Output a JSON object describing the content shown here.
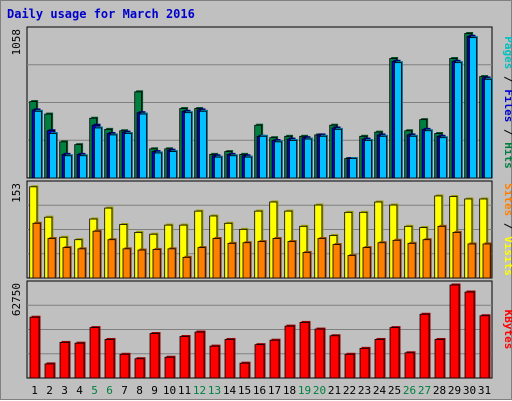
{
  "chart_data": {
    "title": "Daily usage for March 2016",
    "type": "bar",
    "month": "March 2016",
    "days": [
      "1",
      "2",
      "3",
      "4",
      "5",
      "6",
      "7",
      "8",
      "9",
      "10",
      "11",
      "12",
      "13",
      "14",
      "15",
      "16",
      "17",
      "18",
      "19",
      "20",
      "21",
      "22",
      "23",
      "24",
      "25",
      "26",
      "27",
      "28",
      "29",
      "30",
      "31"
    ],
    "weekend_days": [
      5,
      6,
      12,
      13,
      19,
      20,
      26,
      27
    ],
    "panels": [
      {
        "name": "top",
        "ymax_label": "1058",
        "ymax": 1058,
        "right_labels": [
          {
            "text": "Pages",
            "color": "#00c0c0"
          },
          {
            "text": " / ",
            "color": "#000000"
          },
          {
            "text": "Files",
            "color": "#0000cc"
          },
          {
            "text": " / ",
            "color": "#000000"
          },
          {
            "text": "Hits",
            "color": "#008040"
          }
        ],
        "series": [
          {
            "name": "Hits",
            "color": "#008040",
            "values": [
              550,
              460,
              260,
              240,
              430,
              350,
              340,
              620,
              210,
              210,
              500,
              500,
              170,
              190,
              170,
              380,
              290,
              300,
              300,
              310,
              380,
              140,
              300,
              330,
              860,
              340,
              420,
              320,
              860,
              1040,
              730
            ]
          },
          {
            "name": "Files",
            "color": "#0000cc",
            "values": [
              490,
              340,
              170,
              170,
              380,
              320,
              330,
              470,
              190,
              200,
              480,
              490,
              160,
              170,
              160,
              300,
              270,
              280,
              290,
              310,
              360,
              140,
              280,
              310,
              840,
              310,
              350,
              300,
              840,
              1020,
              720
            ]
          },
          {
            "name": "Pages",
            "color": "#00c0ff",
            "values": [
              480,
              320,
              160,
              160,
              360,
              310,
              320,
              460,
              180,
              190,
              470,
              480,
              150,
              160,
              150,
              300,
              260,
              270,
              280,
              300,
              350,
              140,
              270,
              300,
              830,
              300,
              340,
              290,
              830,
              1010,
              710
            ]
          }
        ]
      },
      {
        "name": "middle",
        "ymax_label": "153",
        "ymax": 153,
        "right_labels": [
          {
            "text": "Sites",
            "color": "#ff8000"
          },
          {
            "text": " / ",
            "color": "#000000"
          },
          {
            "text": "Visits",
            "color": "#ffff00"
          }
        ],
        "series": [
          {
            "name": "Visits",
            "color": "#ffff00",
            "values": [
              150,
              100,
              67,
              63,
              97,
              115,
              88,
              75,
              72,
              87,
              87,
              110,
              102,
              90,
              80,
              110,
              125,
              110,
              85,
              120,
              70,
              108,
              108,
              125,
              120,
              85,
              83,
              135,
              134,
              130,
              130
            ]
          },
          {
            "name": "Sites",
            "color": "#ff8000",
            "values": [
              90,
              65,
              50,
              48,
              77,
              63,
              48,
              46,
              47,
              48,
              34,
              50,
              65,
              57,
              58,
              60,
              65,
              60,
              42,
              65,
              55,
              37,
              50,
              58,
              62,
              57,
              63,
              85,
              75,
              56,
              56
            ]
          }
        ]
      },
      {
        "name": "bottom",
        "ymax_label": "62750",
        "ymax": 62750,
        "right_labels": [
          {
            "text": "KBytes",
            "color": "#ff0000"
          }
        ],
        "series": [
          {
            "name": "KBytes",
            "color": "#ff0000",
            "values": [
              41000,
              9500,
              24000,
              23500,
              34000,
              26000,
              16000,
              13000,
              30000,
              14000,
              28000,
              31000,
              21500,
              26000,
              10000,
              22500,
              25500,
              35000,
              37500,
              33000,
              28500,
              16000,
              20000,
              26000,
              34000,
              17000,
              43000,
              26000,
              62750,
              58000,
              42000
            ]
          }
        ]
      }
    ]
  }
}
